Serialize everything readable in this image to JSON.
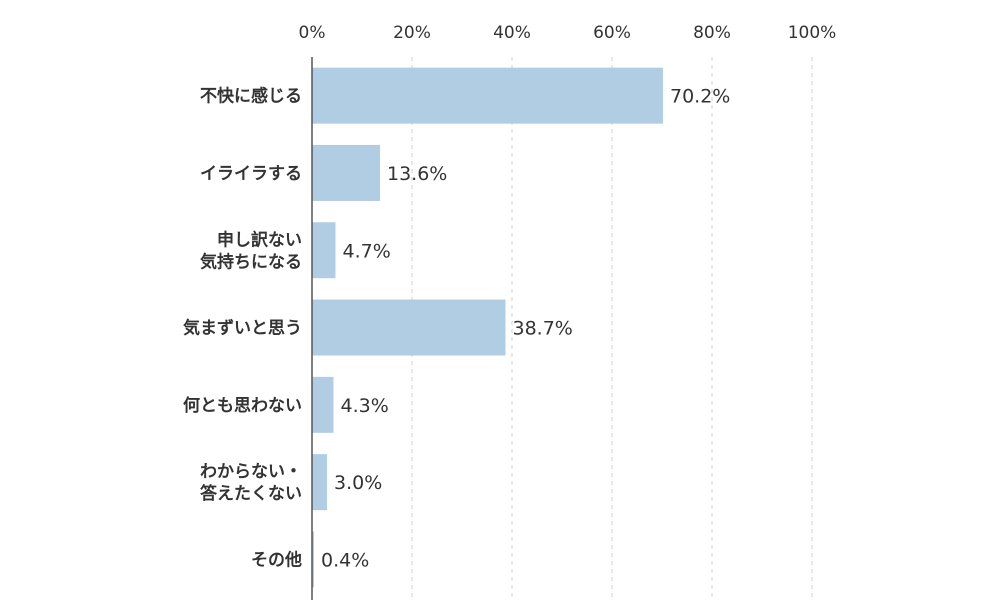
{
  "chart_data": {
    "type": "bar",
    "orientation": "horizontal",
    "categories": [
      [
        "不快に感じる"
      ],
      [
        "イライラする"
      ],
      [
        "申し訳ない",
        "気持ちになる"
      ],
      [
        "気まずいと思う"
      ],
      [
        "何とも思わない"
      ],
      [
        "わからない・",
        "答えたくない"
      ],
      [
        "その他"
      ]
    ],
    "values": [
      70.2,
      13.6,
      4.7,
      38.7,
      4.3,
      3.0,
      0.4
    ],
    "value_labels": [
      "70.2%",
      "13.6%",
      "4.7%",
      "38.7%",
      "4.3%",
      "3.0%",
      "0.4%"
    ],
    "xlim": [
      0,
      100
    ],
    "x_ticks": [
      0,
      20,
      40,
      60,
      80,
      100
    ],
    "x_tick_labels": [
      "0%",
      "20%",
      "40%",
      "60%",
      "80%",
      "100%"
    ],
    "x_axis_position": "top",
    "grid": "vertical dashed",
    "legend": "none",
    "title": "",
    "xlabel": "",
    "ylabel": "",
    "colors": {
      "bar": "#b1cde3",
      "grid": "#cccccc",
      "axis": "#555555",
      "text": "#333333"
    }
  }
}
